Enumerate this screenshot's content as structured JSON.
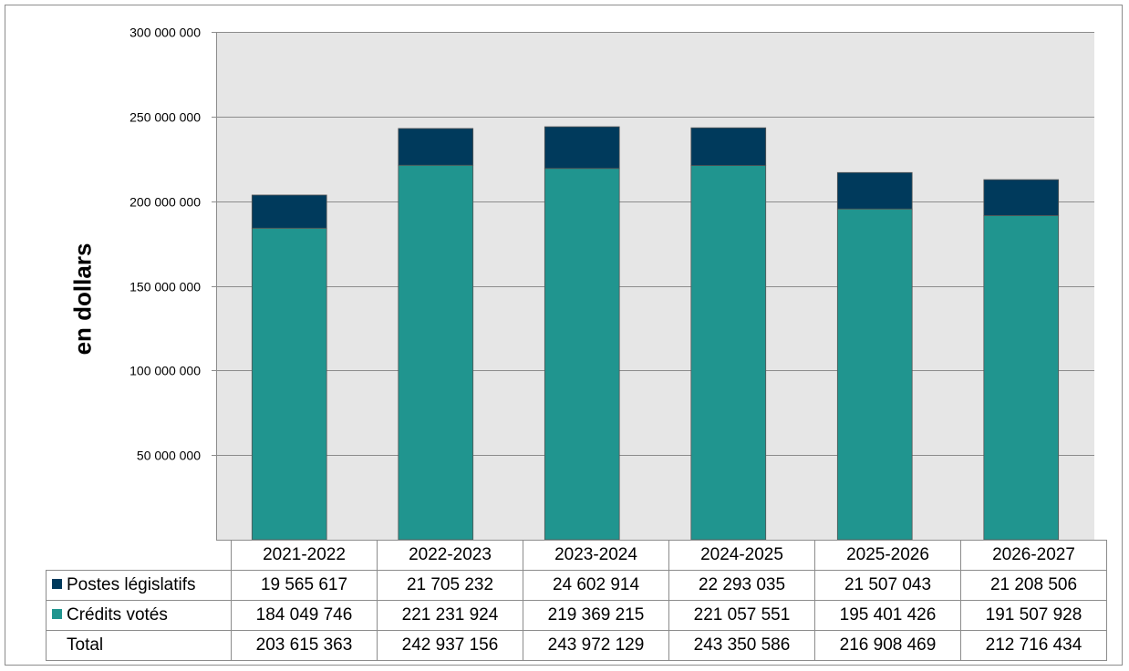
{
  "chart_data": {
    "type": "bar",
    "stacked": true,
    "categories": [
      "2021-2022",
      "2022-2023",
      "2023-2024",
      "2024-2025",
      "2025-2026",
      "2026-2027"
    ],
    "series": [
      {
        "name": "Crédits votés",
        "color": "#20958f",
        "values": [
          184049746,
          221231924,
          219369215,
          221057551,
          195401426,
          191507928
        ],
        "labels": [
          "184 049 746",
          "221 231 924",
          "219 369 215",
          "221 057 551",
          "195 401 426",
          "191 507 928"
        ]
      },
      {
        "name": "Postes législatifs",
        "color": "#003a5c",
        "values": [
          19565617,
          21705232,
          24602914,
          22293035,
          21507043,
          21208506
        ],
        "labels": [
          "19 565 617",
          "21 705 232",
          "24 602 914",
          "22 293 035",
          "21 507 043",
          "21 208 506"
        ]
      }
    ],
    "total": {
      "name": "Total",
      "values": [
        203615363,
        242937156,
        243972129,
        243350586,
        216908469,
        212716434
      ],
      "labels": [
        "203 615 363",
        "242 937 156",
        "243 972 129",
        "243 350 586",
        "216 908 469",
        "212 716 434"
      ]
    },
    "ylabel": "en dollars",
    "ylim": [
      0,
      300000000
    ],
    "yticks": [
      50000000,
      100000000,
      150000000,
      200000000,
      250000000,
      300000000
    ],
    "ytick_labels": [
      "50 000 000",
      "100 000 000",
      "150 000 000",
      "200 000 000",
      "250 000 000",
      "300 000 000"
    ],
    "grid": true,
    "plot_background": "#e6e6e6",
    "legend": "data table below chart"
  }
}
